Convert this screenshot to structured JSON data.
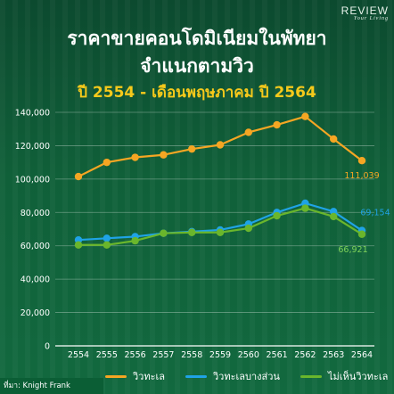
{
  "brand": {
    "name": "REVIEW",
    "tagline": "Your Living"
  },
  "title_line1": "ราคาขายคอนโดมิเนียมในพัทยา",
  "title_line2": "จำแนกตามวิว",
  "subtitle": "ปี 2554 - เดือนพฤษภาคม ปี 2564",
  "source": "ที่มา: Knight Frank",
  "colors": {
    "sea_view": "#f5a623",
    "partial_sea_view": "#1fa3e6",
    "no_sea_view": "#6ab62c",
    "value_label_green": "#7fd35a"
  },
  "chart_data": {
    "type": "line",
    "x": [
      "2554",
      "2555",
      "2556",
      "2557",
      "2558",
      "2559",
      "2560",
      "2561",
      "2562",
      "2563",
      "2564"
    ],
    "ylim": [
      0,
      140000
    ],
    "yticks": [
      "0",
      "20,000",
      "40,000",
      "60,000",
      "80,000",
      "100,000",
      "120,000",
      "140,000"
    ],
    "grid": true,
    "legend_position": "bottom",
    "series": [
      {
        "name": "วิวทะเล",
        "color": "#f5a623",
        "values": [
          101500,
          110000,
          113000,
          114500,
          118000,
          120500,
          128000,
          132500,
          137500,
          124000,
          111039
        ],
        "end_label": "111,039"
      },
      {
        "name": "วิวทะเลบางส่วน",
        "color": "#1fa3e6",
        "values": [
          63500,
          64500,
          65500,
          67500,
          68500,
          69500,
          73000,
          80000,
          85500,
          80500,
          69154
        ],
        "end_label": "69,154"
      },
      {
        "name": "ไม่เห็นวิวทะเล",
        "color": "#6ab62c",
        "values": [
          60500,
          60500,
          63000,
          67500,
          68000,
          68000,
          70500,
          78000,
          82500,
          77500,
          66921
        ],
        "end_label": "66,921"
      }
    ]
  }
}
